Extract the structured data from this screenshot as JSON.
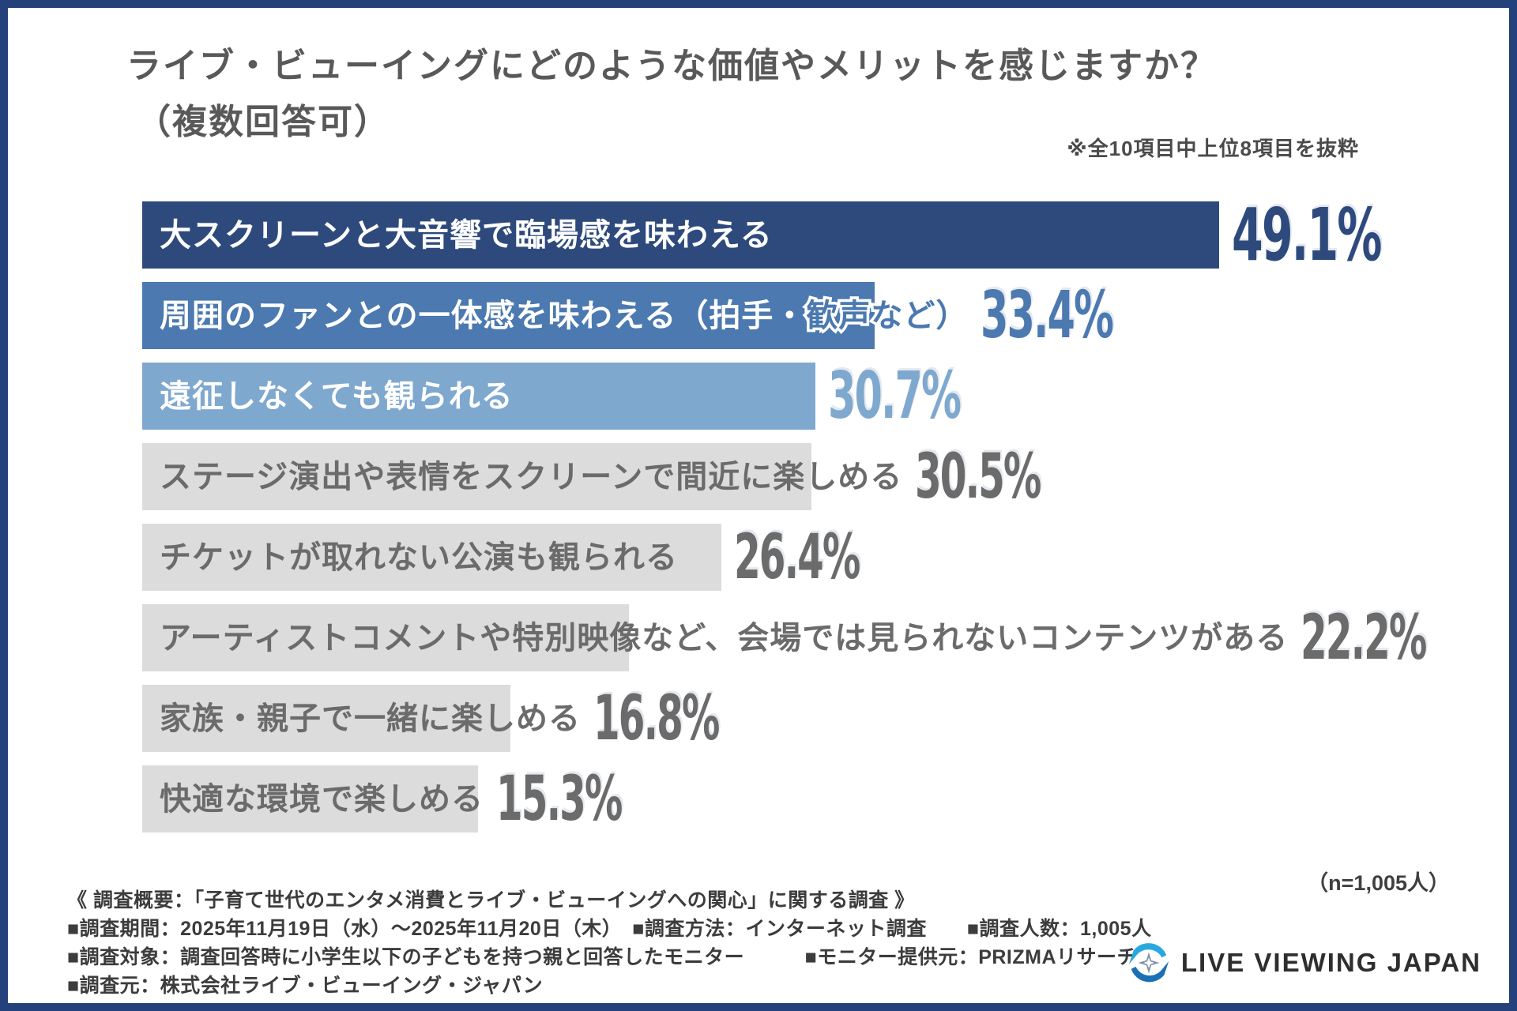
{
  "title": {
    "line1": "ライブ・ビューイングにどのような価値やメリットを感じますか？",
    "line2": "（複数回答可）"
  },
  "note": "※全10項目中上位8項目を抜粋",
  "sample_note": "（n=1,005人）",
  "chart_data": {
    "type": "bar",
    "orientation": "horizontal",
    "title": "ライブ・ビューイングにどのような価値やメリットを感じますか？（複数回答可）",
    "unit": "%",
    "xlim": [
      0,
      50
    ],
    "grid": false,
    "legend": "none",
    "categories": [
      "大スクリーンと大音響で臨場感を味わえる",
      "周囲のファンとの一体感を味わえる（拍手・歓声など）",
      "遠征しなくても観られる",
      "ステージ演出や表情をスクリーンで間近に楽しめる",
      "チケットが取れない公演も観られる",
      "アーティストコメントや特別映像など、会場では見られないコンテンツがある",
      "家族・親子で一緒に楽しめる",
      "快適な環境で楽しめる"
    ],
    "values": [
      49.1,
      33.4,
      30.7,
      30.5,
      26.4,
      22.2,
      16.8,
      15.3
    ],
    "rows": [
      {
        "label": "大スクリーンと大音響で臨場感を味わえる",
        "value": 49.1,
        "display": "49.1%",
        "bar_color": "#2e4a7c",
        "label_color": "#ffffff",
        "value_color": "#2e4a7c"
      },
      {
        "label": "周囲のファンとの一体感を味わえる（拍手・",
        "label_overflow": "歓声など）",
        "value": 33.4,
        "display": "33.4%",
        "bar_color": "#4b79b0",
        "label_color": "#ffffff",
        "value_color": "#4b79b0"
      },
      {
        "label": "遠征しなくても観られる",
        "value": 30.7,
        "display": "30.7%",
        "bar_color": "#7fa8cf",
        "label_color": "#ffffff",
        "value_color": "#7fa8cf"
      },
      {
        "label": "ステージ演出や表情をスクリーンで間近に楽しめる",
        "value": 30.5,
        "display": "30.5%",
        "bar_color": "#dcdcdc",
        "label_color": "#6b6b6b",
        "value_color": "#6b6b6b"
      },
      {
        "label": "チケットが取れない公演も観られる",
        "value": 26.4,
        "display": "26.4%",
        "bar_color": "#dcdcdc",
        "label_color": "#6b6b6b",
        "value_color": "#6b6b6b"
      },
      {
        "label": "アーティストコメントや特別映像など、会場では見られないコンテンツがある",
        "value": 22.2,
        "display": "22.2%",
        "bar_color": "#dcdcdc",
        "label_color": "#6b6b6b",
        "value_color": "#6b6b6b"
      },
      {
        "label": "家族・親子で一緒に楽しめる",
        "value": 16.8,
        "display": "16.8%",
        "bar_color": "#dcdcdc",
        "label_color": "#6b6b6b",
        "value_color": "#6b6b6b"
      },
      {
        "label": "快適な環境で楽しめる",
        "value": 15.3,
        "display": "15.3%",
        "bar_color": "#dcdcdc",
        "label_color": "#6b6b6b",
        "value_color": "#6b6b6b"
      }
    ]
  },
  "footer": {
    "line1": "《 調査概要：「子育て世代のエンタメ消費とライブ・ビューイングへの関心」に関する調査 》",
    "line2": "■調査期間：2025年11月19日（水）～2025年11月20日（木）　■調査方法：インターネット調査　　■調査人数：1,005人",
    "line3": "■調査対象：調査回答時に小学生以下の子どもを持つ親と回答したモニター　　　■モニター提供元：PRIZMAリサーチ",
    "line4": "■調査元：株式会社ライブ・ビューイング・ジャパン"
  },
  "logo": {
    "text": "LIVE VIEWING JAPAN",
    "icon": "swirl-sparkle-logo",
    "icon_color_light": "#29a8e0",
    "icon_color_dark": "#1b6fb5",
    "sparkle_color": "#8091a8"
  },
  "colors": {
    "frame": "#24417c",
    "title_text": "#595959",
    "footer_text": "#3c3c3c"
  }
}
